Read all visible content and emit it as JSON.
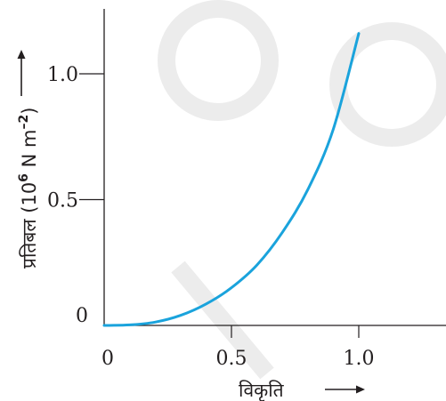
{
  "chart_data": {
    "type": "line",
    "xlabel": "विकृति",
    "ylabel": "प्रतिबल (10⁶ N m⁻²)",
    "ylabel_parts": {
      "main": "प्रतिबल (10",
      "exp1": "6",
      "unit": " N m",
      "exp2": "–2",
      "close": ")"
    },
    "xlim": [
      0,
      1.25
    ],
    "ylim": [
      0,
      1.2
    ],
    "x_ticks": [
      0,
      0.5,
      1.0
    ],
    "x_tick_labels": [
      "0",
      "0.5",
      "1.0"
    ],
    "y_ticks": [
      0,
      0.5,
      1.0
    ],
    "y_tick_labels": [
      "0",
      "0.5",
      "1.0"
    ],
    "grid": false,
    "series": [
      {
        "color": "#1aa3dc",
        "x": [
          0,
          0.1,
          0.2,
          0.3,
          0.4,
          0.5,
          0.6,
          0.7,
          0.8,
          0.9,
          1.0
        ],
        "y": [
          0,
          0.002,
          0.013,
          0.04,
          0.085,
          0.15,
          0.24,
          0.37,
          0.54,
          0.78,
          1.16
        ]
      }
    ]
  }
}
